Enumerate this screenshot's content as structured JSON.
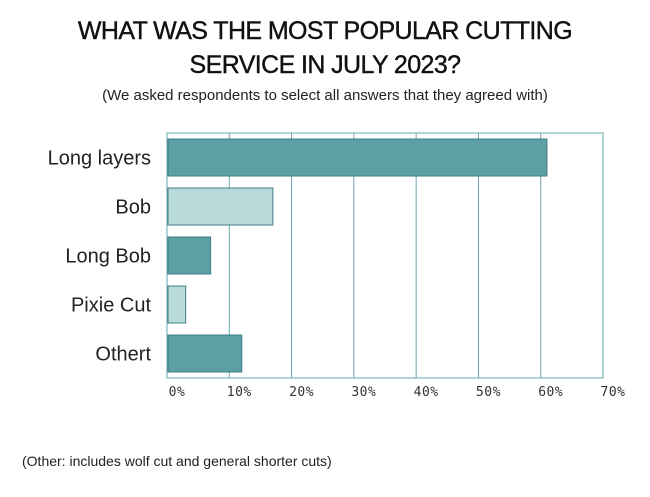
{
  "chart_data": {
    "type": "bar",
    "orientation": "horizontal",
    "title_lines": [
      "WHAT WAS THE MOST POPULAR CUTTING",
      "SERVICE IN JULY 2023?"
    ],
    "subtitle": "(We asked respondents to select all answers that they agreed with)",
    "footnote": "(Other: includes wolf cut and general shorter cuts)",
    "categories": [
      "Long layers",
      "Bob",
      "Long Bob",
      "Pixie Cut",
      "Othert"
    ],
    "values": [
      61,
      17,
      7,
      3,
      12
    ],
    "colors": [
      "#5c9fa5",
      "#b8dadb",
      "#5c9fa5",
      "#b8dadb",
      "#5c9fa5"
    ],
    "xlim": [
      0,
      70
    ],
    "xticks": [
      0,
      10,
      20,
      30,
      40,
      50,
      60,
      70
    ],
    "xtick_labels": [
      "0%",
      "10%",
      "20%",
      "30%",
      "40%",
      "50%",
      "60%",
      "70%"
    ],
    "grid": true
  }
}
